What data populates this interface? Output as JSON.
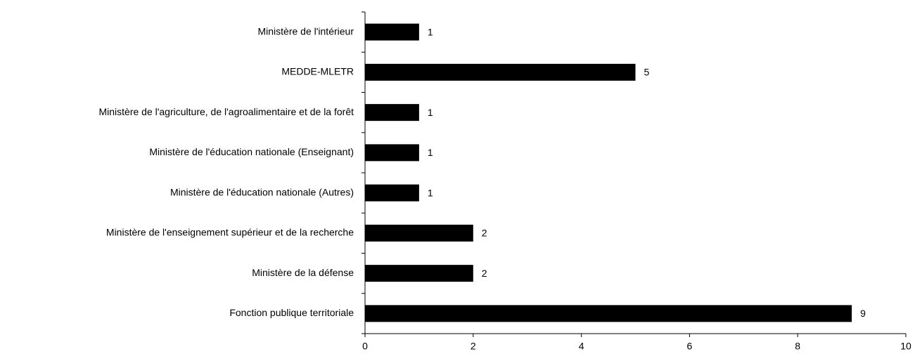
{
  "chart_data": {
    "type": "bar",
    "orientation": "horizontal",
    "categories": [
      "Ministère de l'intérieur",
      "MEDDE-MLETR",
      "Ministère de l'agriculture, de l'agroalimentaire et de la forêt",
      "Ministère de l'éducation nationale (Enseignant)",
      "Ministère de l'éducation nationale (Autres)",
      "Ministère de l'enseignement supérieur et de la recherche",
      "Ministère de la défense",
      "Fonction publique territoriale"
    ],
    "values": [
      1,
      5,
      1,
      1,
      1,
      2,
      2,
      9
    ],
    "color": "#000000",
    "xlim": [
      0,
      10
    ],
    "xticks": [
      0,
      2,
      4,
      6,
      8,
      10
    ],
    "grid": false
  }
}
